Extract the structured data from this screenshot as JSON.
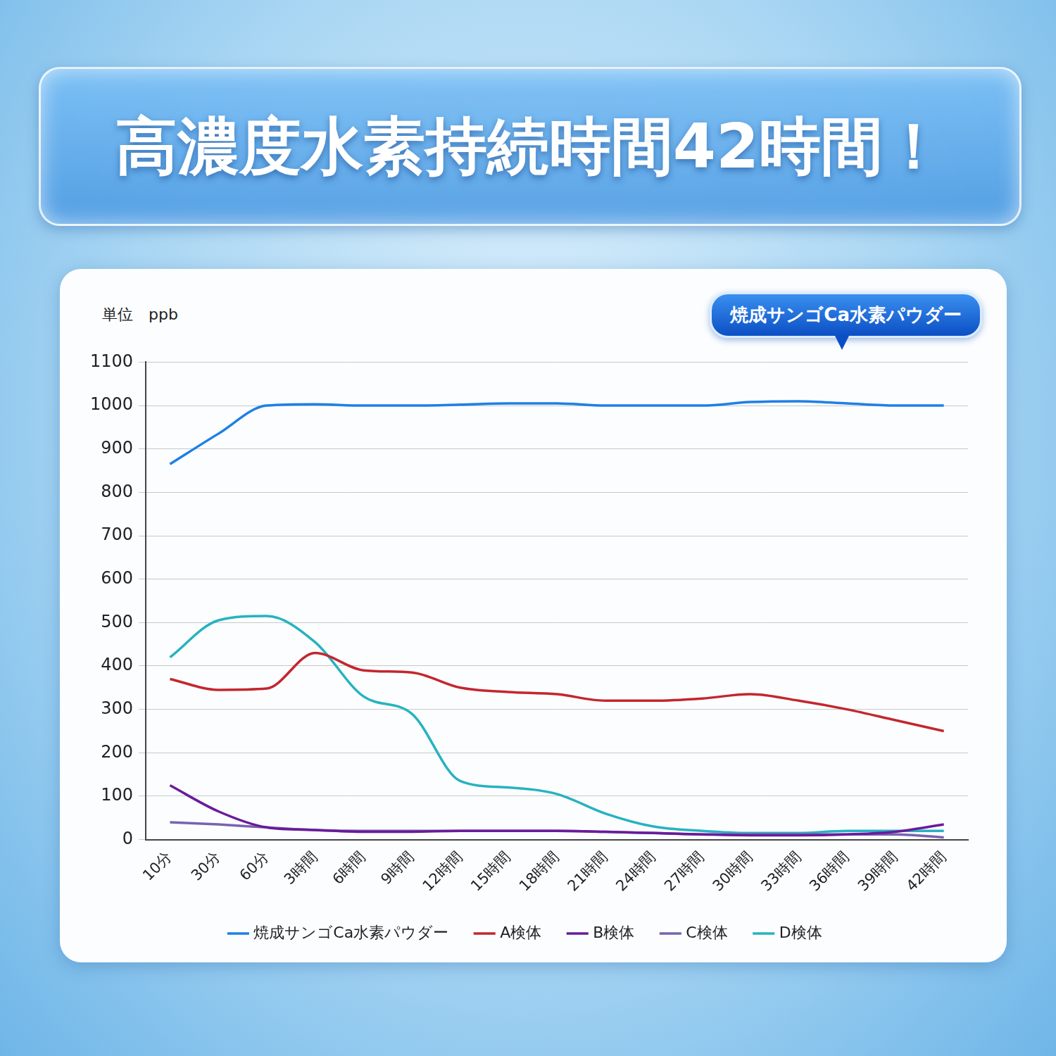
{
  "chart_data": {
    "type": "line",
    "title": "高濃度水素持続時間42時間！",
    "y_label": "単位　ppb",
    "annotation": "焼成サンゴCa水素パウダー",
    "categories": [
      "10分",
      "30分",
      "60分",
      "3時間",
      "6時間",
      "9時間",
      "12時間",
      "15時間",
      "18時間",
      "21時間",
      "24時間",
      "27時間",
      "30時間",
      "33時間",
      "36時間",
      "39時間",
      "42時間"
    ],
    "series": [
      {
        "name": "焼成サンゴCa水素パウダー",
        "color": "#1f7fe6",
        "values": [
          865,
          935,
          1000,
          1003,
          1000,
          1000,
          1002,
          1005,
          1005,
          1000,
          1000,
          1000,
          1008,
          1010,
          1005,
          1000,
          1000
        ]
      },
      {
        "name": "A検体",
        "color": "#c4262e",
        "values": [
          370,
          345,
          348,
          430,
          390,
          385,
          350,
          340,
          335,
          320,
          320,
          325,
          335,
          320,
          300,
          275,
          250
        ]
      },
      {
        "name": "B検体",
        "color": "#6a1b9a",
        "values": [
          125,
          65,
          28,
          22,
          18,
          18,
          20,
          20,
          20,
          18,
          15,
          12,
          10,
          10,
          12,
          18,
          35
        ]
      },
      {
        "name": "C検体",
        "color": "#7a62b0",
        "values": [
          40,
          35,
          28,
          22,
          20,
          20,
          20,
          20,
          20,
          18,
          15,
          12,
          12,
          12,
          12,
          12,
          5
        ]
      },
      {
        "name": "D検体",
        "color": "#27b2c0",
        "values": [
          420,
          505,
          515,
          455,
          330,
          290,
          135,
          120,
          105,
          60,
          30,
          20,
          15,
          15,
          20,
          20,
          20
        ]
      }
    ],
    "ylim": [
      0,
      1100
    ],
    "yticks": [
      0,
      100,
      200,
      300,
      400,
      500,
      600,
      700,
      800,
      900,
      1000,
      1100
    ],
    "grid": true,
    "legend": "bottom"
  }
}
